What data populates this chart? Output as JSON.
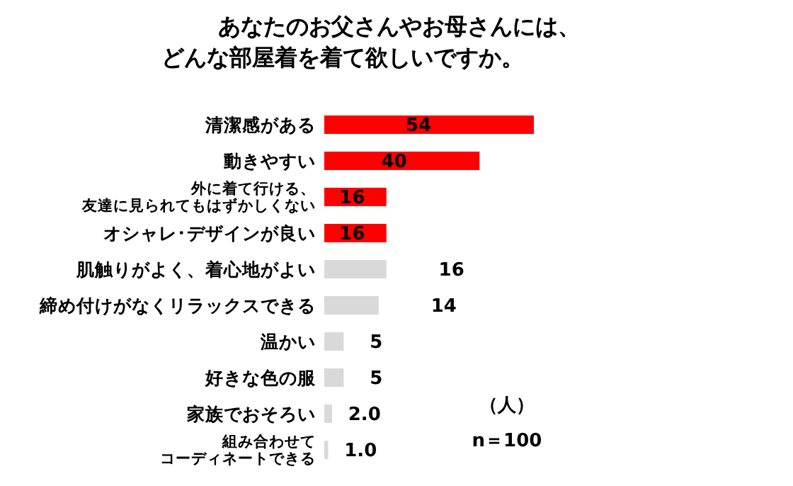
{
  "chart_data": {
    "type": "bar",
    "orientation": "horizontal",
    "relative": false,
    "title": "あなたのお父さんやお母さんには、どんな部屋着を着て欲しいですか。",
    "categories": [
      "清潔感がある",
      "動きやすい",
      "外に着て行ける、友達に見られてもはずかしくない",
      "オシャレ･デザインが良い",
      "肌触りがよく、着心地がよい",
      "締め付けがなくリラックスできる",
      "温かい",
      "好きな色の服",
      "家族でおそろい",
      "組み合わせてコーディネートできる"
    ],
    "values": [
      54,
      40,
      16,
      16,
      16,
      14,
      5,
      5,
      2,
      1
    ],
    "value_labels": [
      "54",
      "40",
      "16",
      "16",
      "16",
      "14",
      "5",
      "5",
      "2.0",
      "1.0"
    ],
    "colors": [
      "#ff0000",
      "#ff0000",
      "#ff0000",
      "#ff0000",
      "#d9d9d9",
      "#d9d9d9",
      "#d9d9d9",
      "#d9d9d9",
      "#d9d9d9",
      "#d9d9d9"
    ],
    "annotations": [
      "（人）",
      "n＝100"
    ]
  }
}
